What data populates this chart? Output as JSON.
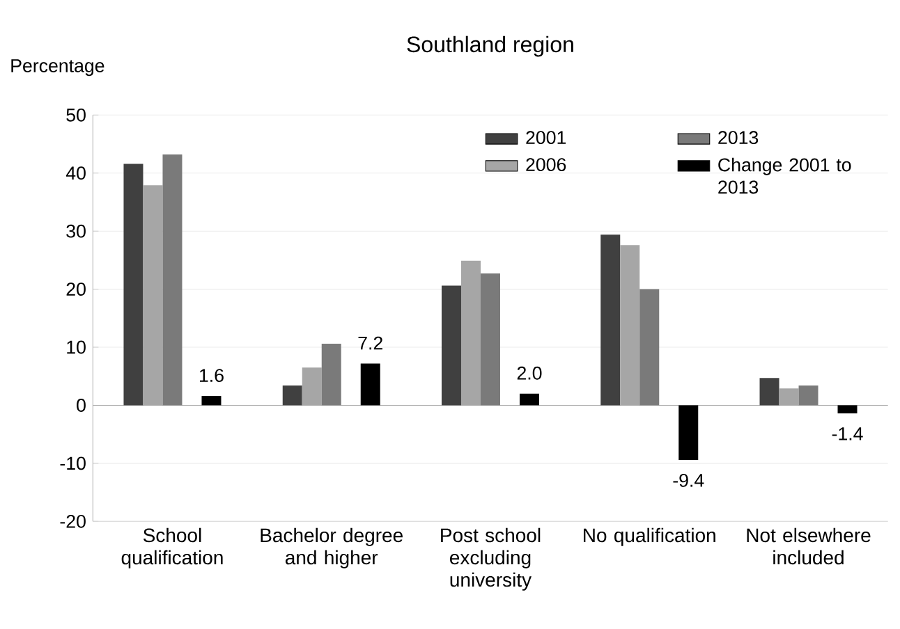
{
  "chart_data": {
    "type": "bar",
    "title": "Southland region",
    "ylabel": "Percentage",
    "categories": [
      "School qualification",
      "Bachelor degree and higher",
      "Post school excluding university",
      "No qualification",
      "Not elsewhere included"
    ],
    "series": [
      {
        "name": "2001",
        "color": "#404040",
        "values": [
          41.6,
          3.4,
          20.6,
          29.4,
          4.7
        ]
      },
      {
        "name": "2006",
        "color": "#a6a6a6",
        "values": [
          37.9,
          6.5,
          24.9,
          27.6,
          2.9
        ]
      },
      {
        "name": "2013",
        "color": "#7a7a7a",
        "values": [
          43.2,
          10.6,
          22.7,
          20.0,
          3.4
        ]
      },
      {
        "name": "Change 2001 to 2013",
        "color": "#000000",
        "values": [
          1.6,
          7.2,
          2.0,
          -9.4,
          -1.4
        ],
        "value_labels": [
          "1.6",
          "7.2",
          "2.0",
          "-9.4",
          "-1.4"
        ]
      }
    ],
    "ylim": [
      -20,
      50
    ],
    "yticks": [
      -20,
      -10,
      0,
      10,
      20,
      30,
      40,
      50
    ],
    "grid": "y",
    "legend": "top right"
  }
}
